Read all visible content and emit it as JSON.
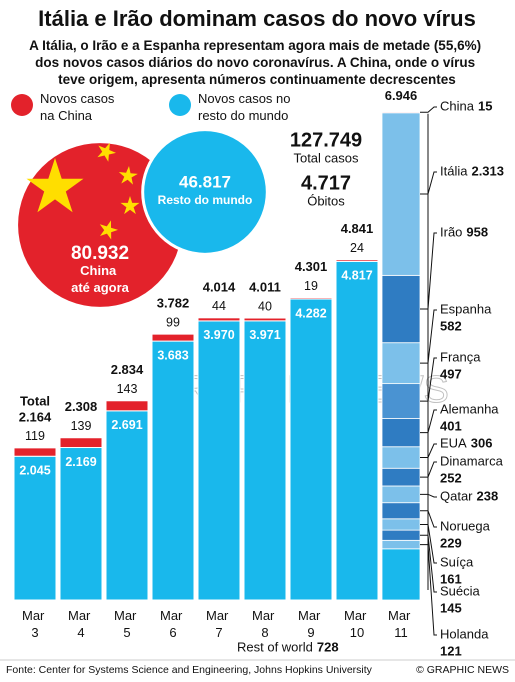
{
  "chart_data": {
    "type": "bar",
    "title": "Itália e Irão dominam casos do novo vírus",
    "subtitle": "A Itália, o Irão e a Espanha representam agora mais de metade (55,6%) dos novos casos diários do novo coronavírus. A China, onde o vírus teve origem, apresenta números continuamente decrescentes",
    "categories": [
      "Mar 3",
      "Mar 4",
      "Mar 5",
      "Mar 6",
      "Mar 7",
      "Mar 8",
      "Mar 9",
      "Mar 10",
      "Mar 11"
    ],
    "series": [
      {
        "name": "Novos casos na China",
        "color": "#e3222b",
        "values": [
          119,
          139,
          143,
          99,
          44,
          40,
          19,
          24,
          15
        ]
      },
      {
        "name": "Novos casos no resto do mundo",
        "color": "#19b8ec",
        "values": [
          2045,
          2169,
          2691,
          3683,
          3970,
          3971,
          4282,
          4817,
          null
        ],
        "value_labels": [
          "2.045",
          "2.169",
          "2.691",
          "3.683",
          "3.970",
          "3.971",
          "4.282",
          "4.817",
          null
        ]
      }
    ],
    "totals": {
      "label": "Total",
      "values": [
        2164,
        2308,
        2834,
        3782,
        4014,
        4011,
        4301,
        4841,
        6946
      ],
      "value_labels": [
        "2.164",
        "2.308",
        "2.834",
        "3.782",
        "4.014",
        "4.011",
        "4.301",
        "4.841",
        "6.946"
      ]
    },
    "breakdown": {
      "china_label": "China",
      "items": [
        {
          "name": "Itália",
          "value": 2313,
          "label": "2.313",
          "color": "#7cc0ea"
        },
        {
          "name": "Irão",
          "value": 958,
          "color": "#2f7cc2"
        },
        {
          "name": "Espanha",
          "value": 582,
          "color": "#7cc0ea"
        },
        {
          "name": "França",
          "value": 497,
          "color": "#4a93d2"
        },
        {
          "name": "Alemanha",
          "value": 401,
          "color": "#2f7cc2"
        },
        {
          "name": "EUA",
          "value": 306,
          "color": "#7cc0ea"
        },
        {
          "name": "Dinamarca",
          "value": 252,
          "color": "#2f7cc2"
        },
        {
          "name": "Qatar",
          "value": 238,
          "color": "#7cc0ea"
        },
        {
          "name": "Noruega",
          "value": 229,
          "color": "#2f7cc2"
        },
        {
          "name": "Suíça",
          "value": 161,
          "color": "#7cc0ea"
        },
        {
          "name": "Suécia",
          "value": 145,
          "color": "#2f7cc2"
        },
        {
          "name": "Holanda",
          "value": 121,
          "color": "#7cc0ea"
        },
        {
          "name": "Rest of world",
          "value": 728,
          "color": "#19b8ec"
        }
      ]
    },
    "circles": [
      {
        "value": 80932,
        "label": "80.932",
        "text": "China até agora",
        "color": "#e3222b"
      },
      {
        "value": 46817,
        "label": "46.817",
        "text": "Resto do mundo",
        "color": "#19b8ec"
      }
    ],
    "stats": [
      {
        "label": "127.749",
        "text": "Total casos"
      },
      {
        "label": "4.717",
        "text": "Óbitos"
      }
    ]
  },
  "watermark": "GRAPHIC NEWS",
  "footer": {
    "source": "Fonte: Center for Systems Science and Engineering, Johns Hopkins University",
    "credit": "© GRAPHIC NEWS"
  }
}
